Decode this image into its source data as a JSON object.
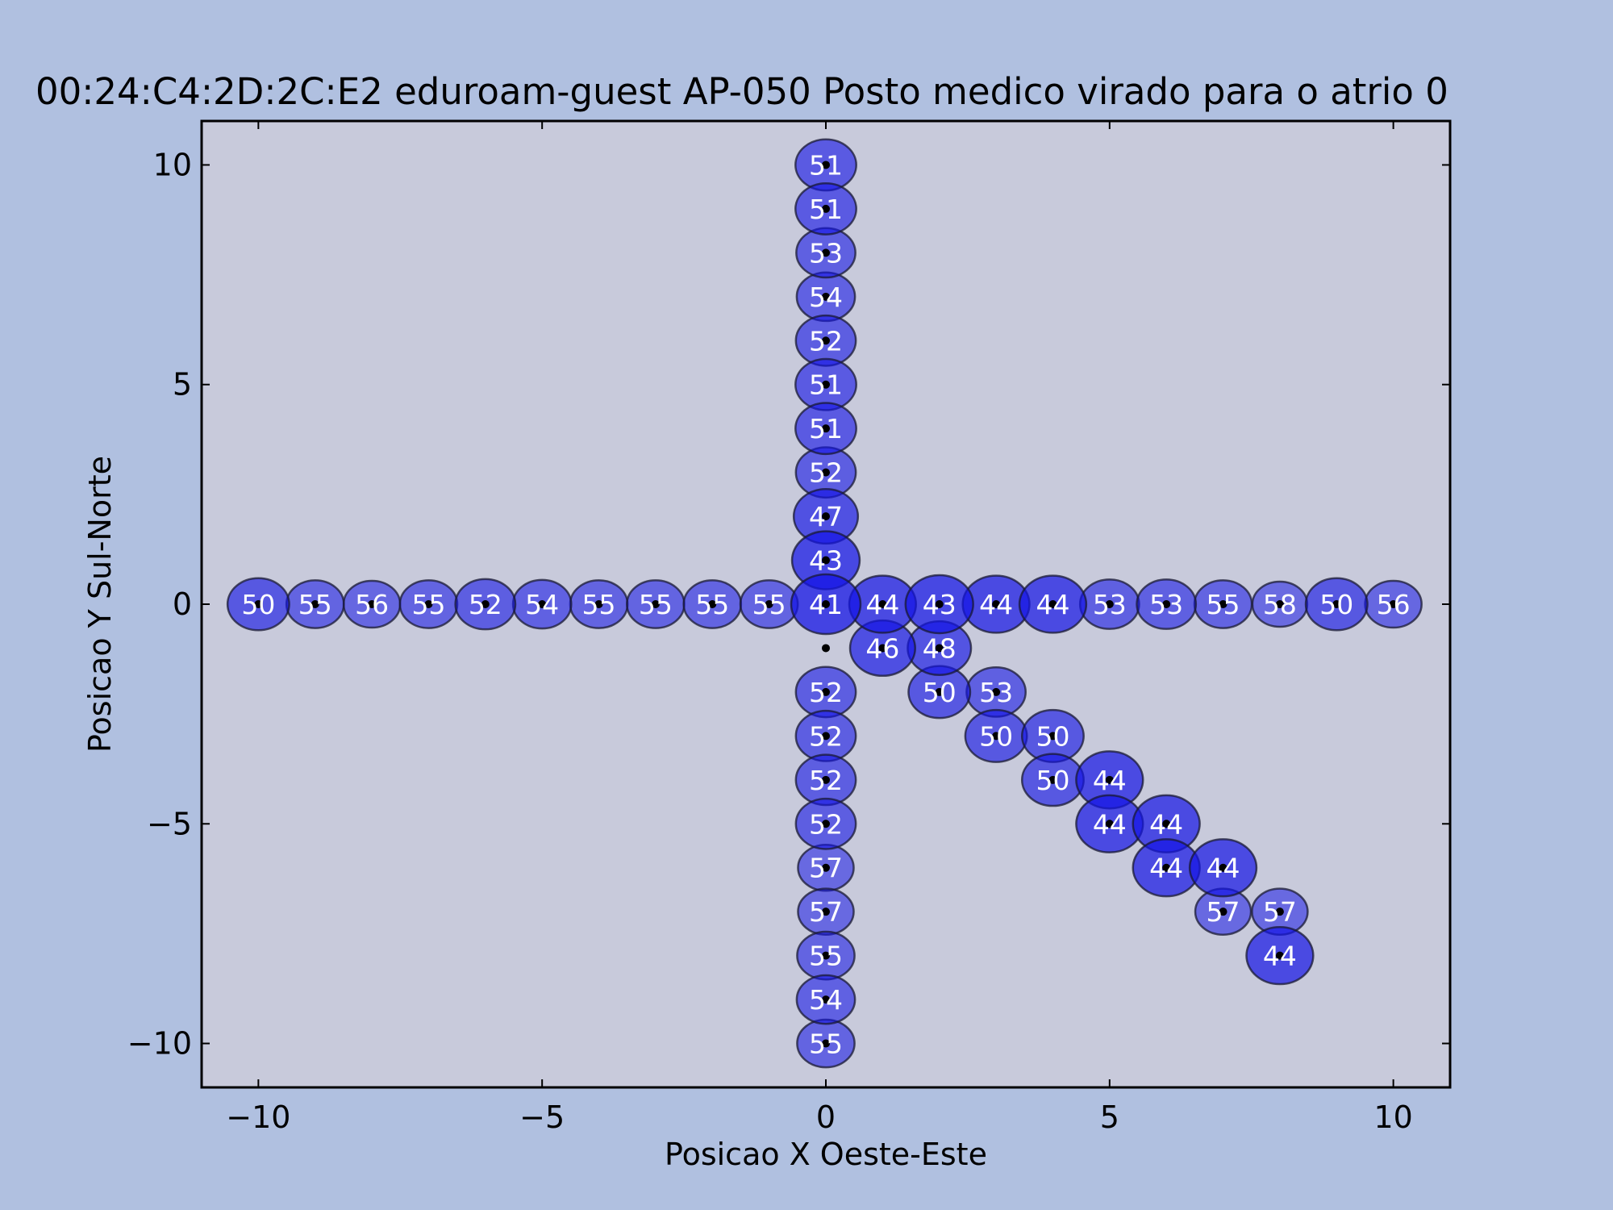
{
  "chart_data": {
    "type": "scatter",
    "title": "00:24:C4:2D:2C:E2 eduroam-guest AP-050 Posto medico virado para o atrio  0",
    "xlabel": "Posicao X Oeste-Este",
    "ylabel": "Posicao Y Sul-Norte",
    "xlim": [
      -11,
      11
    ],
    "ylim": [
      -11,
      11
    ],
    "xticks": [
      -10,
      -5,
      0,
      5,
      10
    ],
    "yticks": [
      -10,
      -5,
      0,
      5,
      10
    ],
    "xtick_labels": [
      "−10",
      "−5",
      "0",
      "5",
      "10"
    ],
    "ytick_labels": [
      "−10",
      "−5",
      "0",
      "5",
      "10"
    ],
    "grid": false,
    "colors": {
      "figure_bg": "#b0c0e0",
      "axes_bg": "#c8cadb",
      "marker_fill": "#1414e6",
      "marker_edge": "#1a1a33",
      "label_text": "#ffffff",
      "point": "#000000"
    },
    "points": [
      {
        "x": -10,
        "y": 0,
        "value": 50
      },
      {
        "x": -9,
        "y": 0,
        "value": 55
      },
      {
        "x": -8,
        "y": 0,
        "value": 56
      },
      {
        "x": -7,
        "y": 0,
        "value": 55
      },
      {
        "x": -6,
        "y": 0,
        "value": 52
      },
      {
        "x": -5,
        "y": 0,
        "value": 54
      },
      {
        "x": -4,
        "y": 0,
        "value": 55
      },
      {
        "x": -3,
        "y": 0,
        "value": 55
      },
      {
        "x": -2,
        "y": 0,
        "value": 55
      },
      {
        "x": -1,
        "y": 0,
        "value": 55
      },
      {
        "x": 0,
        "y": 0,
        "value": 41
      },
      {
        "x": 1,
        "y": 0,
        "value": 44
      },
      {
        "x": 2,
        "y": 0,
        "value": 43
      },
      {
        "x": 3,
        "y": 0,
        "value": 44
      },
      {
        "x": 4,
        "y": 0,
        "value": 44
      },
      {
        "x": 5,
        "y": 0,
        "value": 53
      },
      {
        "x": 6,
        "y": 0,
        "value": 53
      },
      {
        "x": 7,
        "y": 0,
        "value": 55
      },
      {
        "x": 8,
        "y": 0,
        "value": 58
      },
      {
        "x": 9,
        "y": 0,
        "value": 50
      },
      {
        "x": 10,
        "y": 0,
        "value": 56
      },
      {
        "x": 0,
        "y": 10,
        "value": 51
      },
      {
        "x": 0,
        "y": 9,
        "value": 51
      },
      {
        "x": 0,
        "y": 8,
        "value": 53
      },
      {
        "x": 0,
        "y": 7,
        "value": 54
      },
      {
        "x": 0,
        "y": 6,
        "value": 52
      },
      {
        "x": 0,
        "y": 5,
        "value": 51
      },
      {
        "x": 0,
        "y": 4,
        "value": 51
      },
      {
        "x": 0,
        "y": 3,
        "value": 52
      },
      {
        "x": 0,
        "y": 2,
        "value": 47
      },
      {
        "x": 0,
        "y": 1,
        "value": 43
      },
      {
        "x": 0,
        "y": -2,
        "value": 52
      },
      {
        "x": 0,
        "y": -3,
        "value": 52
      },
      {
        "x": 0,
        "y": -4,
        "value": 52
      },
      {
        "x": 0,
        "y": -5,
        "value": 52
      },
      {
        "x": 0,
        "y": -6,
        "value": 57
      },
      {
        "x": 0,
        "y": -7,
        "value": 57
      },
      {
        "x": 0,
        "y": -8,
        "value": 55
      },
      {
        "x": 0,
        "y": -9,
        "value": 54
      },
      {
        "x": 0,
        "y": -10,
        "value": 55
      },
      {
        "x": 1,
        "y": -1,
        "value": 46
      },
      {
        "x": 2,
        "y": -1,
        "value": 48
      },
      {
        "x": 2,
        "y": -2,
        "value": 50
      },
      {
        "x": 3,
        "y": -2,
        "value": 53
      },
      {
        "x": 3,
        "y": -3,
        "value": 50
      },
      {
        "x": 4,
        "y": -3,
        "value": 50
      },
      {
        "x": 4,
        "y": -4,
        "value": 50
      },
      {
        "x": 5,
        "y": -4,
        "value": 44
      },
      {
        "x": 5,
        "y": -5,
        "value": 44
      },
      {
        "x": 6,
        "y": -5,
        "value": 44
      },
      {
        "x": 6,
        "y": -6,
        "value": 44
      },
      {
        "x": 7,
        "y": -6,
        "value": 44
      },
      {
        "x": 7,
        "y": -7,
        "value": 57
      },
      {
        "x": 8,
        "y": -7,
        "value": 57
      },
      {
        "x": 8,
        "y": -8,
        "value": 44
      }
    ],
    "unlabeled_points": [
      {
        "x": 0,
        "y": -1
      }
    ]
  }
}
